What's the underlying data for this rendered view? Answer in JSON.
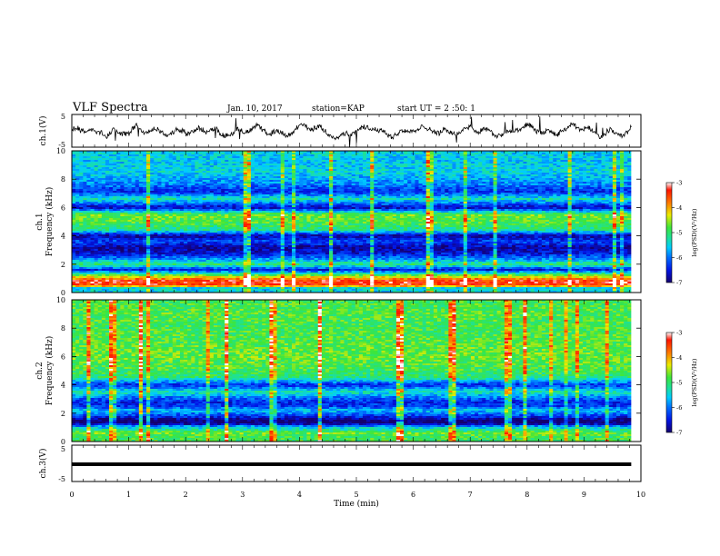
{
  "header": {
    "title": "VLF Spectra",
    "date": "Jan. 10, 2017",
    "station": "station=KAP",
    "start": "start UT =  2 :50: 1"
  },
  "chart_data": [
    {
      "type": "line",
      "panel": "ch1_waveform",
      "ylabel": "ch.1(V)",
      "xlim": [
        0,
        10
      ],
      "ylim": [
        -5,
        5
      ],
      "yticks": [
        "5",
        "-5"
      ],
      "x_end_min": 9.83,
      "description_note": ""
    },
    {
      "type": "heatmap",
      "panel": "ch1_spectrogram",
      "ylabel": "ch.1\nFrequency (kHz)",
      "ylabel_line1": "ch.1",
      "ylabel_line2": "Frequency (kHz)",
      "xlim": [
        0,
        10
      ],
      "ylim": [
        0,
        10
      ],
      "yticks": [
        "0",
        "2",
        "4",
        "6",
        "8",
        "10"
      ],
      "colorbar": {
        "label": "log(PSD)(V²/Hz)",
        "range": [
          -7,
          -3
        ],
        "ticks": [
          "-3",
          "-4",
          "-5",
          "-6",
          "-7"
        ]
      },
      "bands_khz": [
        {
          "f": 0.2,
          "level": -6.8
        },
        {
          "f": 0.5,
          "level": -3.5
        },
        {
          "f": 0.8,
          "level": -3.3
        },
        {
          "f": 1.2,
          "level": -4.6
        },
        {
          "f": 1.6,
          "level": -6.5
        },
        {
          "f": 2.0,
          "level": -5.0
        },
        {
          "f": 2.3,
          "level": -5.8
        },
        {
          "f": 2.8,
          "level": -6.6
        },
        {
          "f": 3.2,
          "level": -6.8
        },
        {
          "f": 3.6,
          "level": -6.2
        },
        {
          "f": 4.0,
          "level": -6.8
        },
        {
          "f": 4.4,
          "level": -5.2
        },
        {
          "f": 5.0,
          "level": -4.8
        },
        {
          "f": 5.5,
          "level": -4.7
        },
        {
          "f": 6.0,
          "level": -6.7
        },
        {
          "f": 6.6,
          "level": -5.3
        },
        {
          "f": 7.1,
          "level": -6.4
        },
        {
          "f": 7.7,
          "level": -5.9
        },
        {
          "f": 8.5,
          "level": -5.5
        },
        {
          "f": 9.3,
          "level": -5.6
        },
        {
          "f": 10.0,
          "level": -5.5
        }
      ]
    },
    {
      "type": "heatmap",
      "panel": "ch2_spectrogram",
      "ylabel_line1": "ch.2",
      "ylabel_line2": "Frequency (kHz)",
      "xlim": [
        0,
        10
      ],
      "ylim": [
        0,
        10
      ],
      "yticks": [
        "0",
        "2",
        "4",
        "6",
        "8",
        "10"
      ],
      "colorbar": {
        "label": "log(PSD)(V²/Hz)",
        "range": [
          -7,
          -3
        ],
        "ticks": [
          "-3",
          "-4",
          "-5",
          "-6",
          "-7"
        ]
      },
      "bands_khz": [
        {
          "f": 0.2,
          "level": -5.0
        },
        {
          "f": 0.6,
          "level": -4.7
        },
        {
          "f": 1.0,
          "level": -5.6
        },
        {
          "f": 1.4,
          "level": -6.9
        },
        {
          "f": 1.8,
          "level": -6.0
        },
        {
          "f": 2.2,
          "level": -5.3
        },
        {
          "f": 2.7,
          "level": -6.5
        },
        {
          "f": 3.1,
          "level": -6.0
        },
        {
          "f": 3.5,
          "level": -5.3
        },
        {
          "f": 4.0,
          "level": -6.4
        },
        {
          "f": 4.5,
          "level": -5.1
        },
        {
          "f": 5.0,
          "level": -4.9
        },
        {
          "f": 6.0,
          "level": -4.7
        },
        {
          "f": 7.0,
          "level": -4.8
        },
        {
          "f": 8.0,
          "level": -4.9
        },
        {
          "f": 9.0,
          "level": -4.8
        },
        {
          "f": 10.0,
          "level": -4.9
        }
      ]
    },
    {
      "type": "line",
      "panel": "ch3_waveform",
      "ylabel": "ch.3(V)",
      "xlim": [
        0,
        10
      ],
      "ylim": [
        -5,
        5
      ],
      "yticks": [
        "5",
        "-5"
      ],
      "constant_value_v": 0
    }
  ],
  "xaxis": {
    "label": "Time (min)",
    "ticks": [
      "0",
      "1",
      "2",
      "3",
      "4",
      "5",
      "6",
      "7",
      "8",
      "9",
      "10"
    ],
    "data_end_min": 9.83
  },
  "colorbar_gradient": [
    "#1a0066",
    "#0020ff",
    "#00c8ff",
    "#20e060",
    "#f0f000",
    "#ff4000",
    "#ffffff"
  ]
}
